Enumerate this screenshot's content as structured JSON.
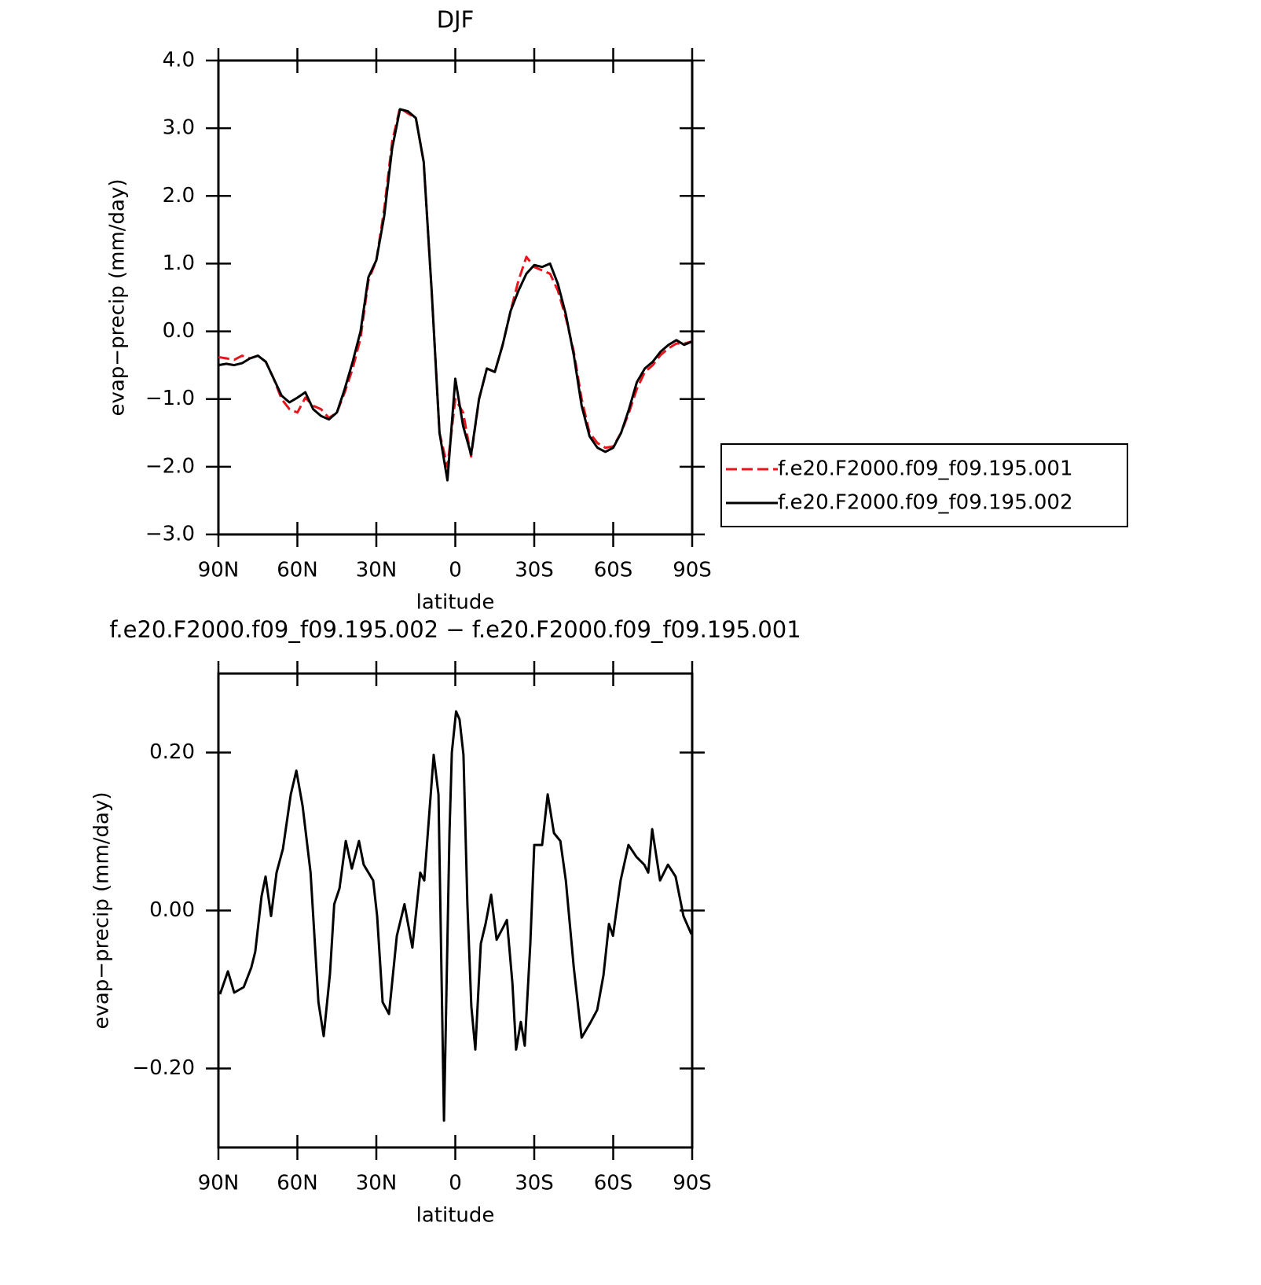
{
  "chart_data": [
    {
      "type": "line",
      "title": "DJF",
      "xlabel": "latitude",
      "ylabel": "evap−precip (mm/day)",
      "x": [
        90,
        87,
        84,
        81,
        78,
        75,
        72,
        69,
        66,
        63,
        60,
        57,
        54,
        51,
        48,
        45,
        42,
        39,
        36,
        33,
        30,
        27,
        24,
        21,
        18,
        15,
        12,
        9,
        6,
        3,
        0,
        -3,
        -6,
        -9,
        -12,
        -15,
        -18,
        -21,
        -24,
        -27,
        -30,
        -33,
        -36,
        -39,
        -42,
        -45,
        -48,
        -51,
        -54,
        -57,
        -60,
        -63,
        -66,
        -69,
        -72,
        -75,
        -78,
        -81,
        -84,
        -87,
        -90
      ],
      "series": [
        {
          "name": "f.e20.F2000.f09_f09.195.001",
          "color": "#e8141c",
          "line_style": "dashed",
          "values": [
            -0.38,
            -0.4,
            -0.42,
            -0.36,
            -0.4,
            -0.36,
            -0.45,
            -0.7,
            -1.0,
            -1.15,
            -1.2,
            -0.98,
            -1.1,
            -1.15,
            -1.28,
            -1.2,
            -0.9,
            -0.55,
            -0.1,
            0.75,
            1.05,
            1.8,
            2.8,
            3.3,
            3.22,
            3.15,
            2.5,
            0.6,
            -1.5,
            -2.0,
            -1.0,
            -1.2,
            -1.85,
            -1.0,
            -0.55,
            -0.6,
            -0.2,
            0.3,
            0.75,
            1.1,
            0.95,
            0.9,
            0.85,
            0.6,
            0.2,
            -0.3,
            -1.0,
            -1.5,
            -1.65,
            -1.72,
            -1.7,
            -1.5,
            -1.2,
            -0.85,
            -0.6,
            -0.5,
            -0.35,
            -0.25,
            -0.18,
            -0.18,
            -0.15
          ]
        },
        {
          "name": "f.e20.F2000.f09_f09.195.002",
          "color": "#000000",
          "line_style": "solid",
          "values": [
            -0.5,
            -0.48,
            -0.5,
            -0.47,
            -0.4,
            -0.36,
            -0.45,
            -0.7,
            -0.95,
            -1.05,
            -0.98,
            -0.9,
            -1.15,
            -1.25,
            -1.3,
            -1.2,
            -0.85,
            -0.45,
            0.0,
            0.8,
            1.05,
            1.7,
            2.7,
            3.28,
            3.25,
            3.15,
            2.5,
            0.6,
            -1.5,
            -2.2,
            -0.7,
            -1.4,
            -1.82,
            -1.0,
            -0.55,
            -0.6,
            -0.2,
            0.3,
            0.6,
            0.85,
            0.98,
            0.95,
            1.0,
            0.7,
            0.25,
            -0.35,
            -1.1,
            -1.55,
            -1.72,
            -1.78,
            -1.72,
            -1.5,
            -1.15,
            -0.75,
            -0.55,
            -0.45,
            -0.3,
            -0.2,
            -0.13,
            -0.2,
            -0.15
          ]
        }
      ],
      "xlim": [
        90,
        -90
      ],
      "xticks": [
        {
          "value": 90,
          "label": "90N"
        },
        {
          "value": 60,
          "label": "60N"
        },
        {
          "value": 30,
          "label": "30N"
        },
        0,
        {
          "value": -30,
          "label": "30S"
        },
        {
          "value": -60,
          "label": "60S"
        },
        {
          "value": -90,
          "label": "90S"
        }
      ],
      "ylim": [
        -3,
        4
      ],
      "yticks": [
        {
          "value": -3,
          "label": "−3.0"
        },
        {
          "value": -2,
          "label": "−2.0"
        },
        {
          "value": -1,
          "label": "−1.0"
        },
        {
          "value": 0,
          "label": "0.0"
        },
        {
          "value": 1,
          "label": "1.0"
        },
        {
          "value": 2,
          "label": "2.0"
        },
        {
          "value": 3,
          "label": "3.0"
        },
        {
          "value": 4,
          "label": "4.0"
        }
      ],
      "legend": "right"
    },
    {
      "type": "line",
      "title": "f.e20.F2000.f09_f09.195.002 − f.e20.F2000.f09_f09.195.001",
      "xlabel": "latitude",
      "ylabel": "evap−precip (mm/day)",
      "x": [
        89.4,
        86.4,
        84,
        80.4,
        77.5,
        76,
        73.6,
        72.1,
        70,
        67.9,
        65.5,
        62.5,
        60.4,
        58,
        55,
        52,
        50,
        47.6,
        46,
        44,
        41.6,
        39.3,
        36.6,
        34.8,
        31.2,
        29.7,
        27.6,
        25.2,
        22.2,
        19.3,
        16.3,
        13.3,
        11.8,
        8.2,
        6.4,
        4.3,
        2.2,
        1.3,
        -0.3,
        -1.6,
        -3.1,
        -4.6,
        -6.1,
        -7.6,
        -9.7,
        -11.5,
        -13.6,
        -15.7,
        -18.1,
        -19.6,
        -21.7,
        -23.1,
        -24.9,
        -26.4,
        -28.5,
        -30,
        -33,
        -35.1,
        -37.5,
        -39.9,
        -42,
        -45,
        -48,
        -51.5,
        -53.9,
        -56.3,
        -58.4,
        -59.9,
        -62.8,
        -65.8,
        -68.8,
        -71.8,
        -73.3,
        -74.8,
        -77.8,
        -80.8,
        -83.7,
        -86.7,
        -89.7
      ],
      "series": [
        {
          "color": "#000000",
          "line_style": "solid",
          "values": [
            -0.106,
            -0.077,
            -0.104,
            -0.097,
            -0.072,
            -0.052,
            0.018,
            0.043,
            -0.007,
            0.048,
            0.078,
            0.147,
            0.177,
            0.132,
            0.048,
            -0.116,
            -0.159,
            -0.08,
            0.008,
            0.028,
            0.088,
            0.053,
            0.088,
            0.058,
            0.038,
            -0.007,
            -0.116,
            -0.131,
            -0.032,
            0.008,
            -0.047,
            0.048,
            0.038,
            0.197,
            0.147,
            -0.266,
            0.098,
            0.2,
            0.252,
            0.242,
            0.197,
            0.008,
            -0.121,
            -0.176,
            -0.042,
            -0.017,
            0.02,
            -0.037,
            -0.022,
            -0.012,
            -0.092,
            -0.176,
            -0.141,
            -0.171,
            -0.042,
            0.083,
            0.083,
            0.147,
            0.098,
            0.088,
            0.038,
            -0.072,
            -0.161,
            -0.141,
            -0.126,
            -0.082,
            -0.017,
            -0.032,
            0.038,
            0.083,
            0.068,
            0.058,
            0.048,
            0.103,
            0.038,
            0.058,
            0.043,
            -0.007,
            -0.03
          ]
        }
      ],
      "xlim": [
        90,
        -90
      ],
      "xticks": [
        {
          "value": 90,
          "label": "90N"
        },
        {
          "value": 60,
          "label": "60N"
        },
        {
          "value": 30,
          "label": "30N"
        },
        0,
        {
          "value": -30,
          "label": "30S"
        },
        {
          "value": -60,
          "label": "60S"
        },
        {
          "value": -90,
          "label": "90S"
        }
      ],
      "ylim": [
        -0.3,
        0.3
      ],
      "yticks": [
        {
          "value": -0.2,
          "label": "−0.20"
        },
        {
          "value": 0,
          "label": "0.00"
        },
        {
          "value": 0.2,
          "label": "0.20"
        }
      ]
    }
  ]
}
